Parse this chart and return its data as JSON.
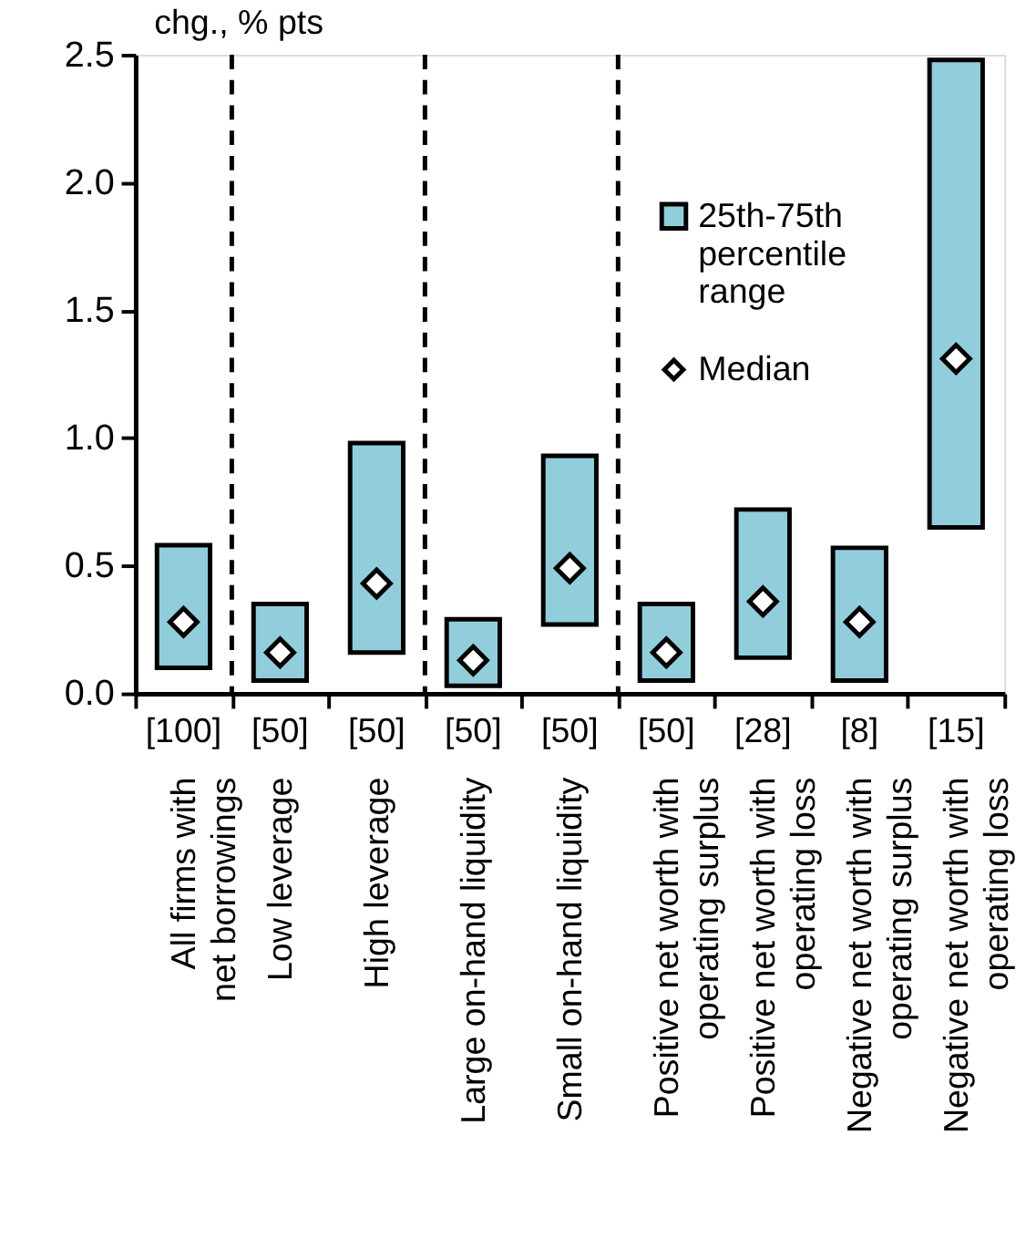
{
  "chart_data": {
    "type": "bar",
    "ylabel": "chg., % pts",
    "categories": [
      "All firms with\nnet borrowings",
      "Low leverage",
      "High leverage",
      "Large on-hand liquidity",
      "Small on-hand liquidity",
      "Positive net worth with\noperating surplus",
      "Positive net worth with\noperating loss",
      "Negative net worth with\noperating surplus",
      "Negative net worth with\noperating loss"
    ],
    "series": [
      {
        "name": "25th-75th\npercentile\nrange",
        "color": "#92cddc",
        "base": [
          0.1,
          0.05,
          0.16,
          0.03,
          0.27,
          0.05,
          0.14,
          0.05,
          0.65
        ],
        "values": [
          0.48,
          0.3,
          0.82,
          0.26,
          0.66,
          0.3,
          0.58,
          0.52,
          1.83
        ]
      },
      {
        "name": "Median",
        "type": "scatter",
        "marker": "diamond",
        "color": "#ffffff",
        "values": [
          0.28,
          0.16,
          0.43,
          0.13,
          0.49,
          0.16,
          0.36,
          0.28,
          1.31
        ]
      }
    ],
    "ylim": [
      0,
      2.5
    ],
    "yticks": [
      {
        "value": 0,
        "label": "0.0"
      },
      {
        "value": 0.5,
        "label": "0.5"
      },
      {
        "value": 1,
        "label": "1.0"
      },
      {
        "value": 1.5,
        "label": "1.5"
      },
      {
        "value": 2,
        "label": "2.0"
      },
      {
        "value": 2.5,
        "label": "2.5"
      }
    ],
    "annotations": [
      "[100]",
      "[50]",
      "[50]",
      "[50]",
      "[50]",
      "[50]",
      "[28]",
      "[8]",
      "[15]"
    ],
    "grid": false,
    "legend": "top right"
  }
}
